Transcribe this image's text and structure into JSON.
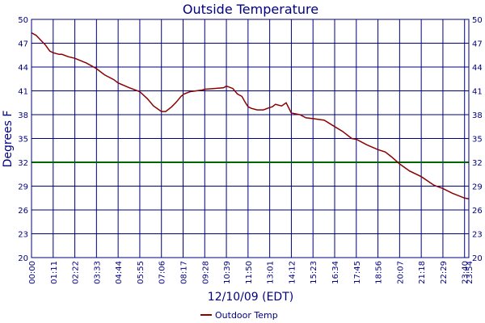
{
  "chart_data": {
    "type": "line",
    "title": "Outside Temperature",
    "xlabel": "12/10/09 (EDT)",
    "ylabel": "Degrees F",
    "ylim": [
      20,
      50
    ],
    "y_ticks": [
      "20",
      "23",
      "26",
      "29",
      "32",
      "35",
      "38",
      "41",
      "44",
      "47",
      "50"
    ],
    "x_ticks": [
      "00:00",
      "01:11",
      "02:22",
      "03:33",
      "04:44",
      "05:55",
      "07:06",
      "08:17",
      "09:28",
      "10:39",
      "11:50",
      "13:01",
      "14:12",
      "15:23",
      "16:34",
      "17:45",
      "18:56",
      "20:07",
      "21:18",
      "22:29",
      "23:40",
      "23:54"
    ],
    "xlim_minutes": [
      0,
      1434
    ],
    "grid": true,
    "legend_position": "bottom-center",
    "reference_line": {
      "value": 32,
      "color": "#006400"
    },
    "colors": {
      "series": "#8b0000",
      "grid": "#000080",
      "text": "#000080"
    },
    "series": [
      {
        "name": "Outdoor Temp",
        "x_minutes": [
          0,
          15,
          30,
          45,
          60,
          71,
          90,
          100,
          120,
          142,
          180,
          213,
          240,
          270,
          284,
          320,
          355,
          380,
          400,
          426,
          440,
          460,
          475,
          490,
          500,
          520,
          540,
          560,
          568,
          600,
          630,
          639,
          660,
          675,
          690,
          700,
          710,
          720,
          740,
          760,
          781,
          790,
          800,
          820,
          835,
          852,
          880,
          900,
          923,
          960,
          994,
          1020,
          1050,
          1065,
          1100,
          1136,
          1160,
          1180,
          1207,
          1240,
          1278,
          1320,
          1349,
          1380,
          1420,
          1434
        ],
        "y": [
          48.3,
          48.0,
          47.4,
          46.8,
          46.0,
          45.8,
          45.6,
          45.6,
          45.3,
          45.1,
          44.5,
          43.8,
          43.0,
          42.4,
          42.0,
          41.4,
          40.9,
          40.0,
          39.1,
          38.4,
          38.4,
          39.0,
          39.6,
          40.3,
          40.6,
          40.9,
          41.0,
          41.1,
          41.2,
          41.3,
          41.4,
          41.6,
          41.3,
          40.6,
          40.3,
          39.6,
          39.0,
          38.8,
          38.6,
          38.6,
          38.9,
          39.0,
          39.3,
          39.1,
          39.5,
          38.2,
          38.0,
          37.6,
          37.5,
          37.3,
          36.5,
          35.9,
          35.0,
          34.9,
          34.2,
          33.6,
          33.3,
          32.7,
          31.8,
          30.9,
          30.2,
          29.1,
          28.7,
          28.1,
          27.5,
          27.4
        ]
      }
    ]
  }
}
